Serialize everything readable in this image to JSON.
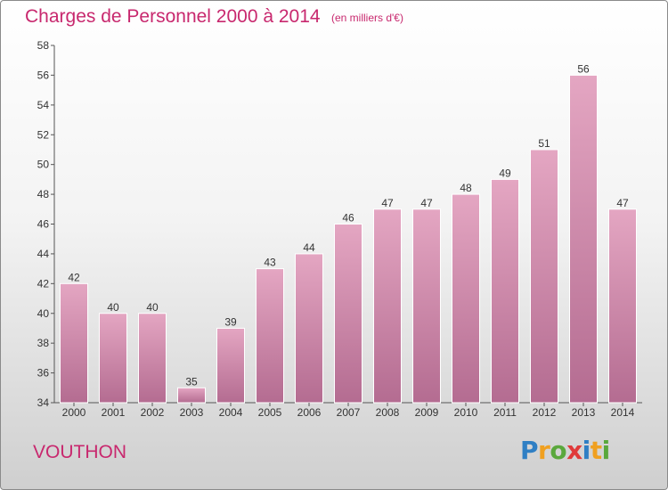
{
  "chart_data": {
    "type": "bar",
    "title": "Charges de Personnel 2000 à 2014",
    "subtitle": "(en milliers d'€)",
    "categories": [
      "2000",
      "2001",
      "2002",
      "2003",
      "2004",
      "2005",
      "2006",
      "2007",
      "2008",
      "2009",
      "2010",
      "2011",
      "2012",
      "2013",
      "2014"
    ],
    "values": [
      42,
      40,
      40,
      35,
      39,
      43,
      44,
      46,
      47,
      47,
      48,
      49,
      51,
      56,
      47
    ],
    "ylim": [
      34,
      58
    ],
    "yticks": [
      34,
      36,
      38,
      40,
      42,
      44,
      46,
      48,
      50,
      52,
      54,
      56,
      58
    ],
    "xlabel": "",
    "ylabel": "",
    "grid": false,
    "bar_color": "#d98aae"
  },
  "place_name": "VOUTHON",
  "logo": {
    "letters": [
      "P",
      "r",
      "o",
      "x",
      "i",
      "t",
      "i"
    ],
    "colors": [
      "#2f7fc4",
      "#f0a020",
      "#5aa83c",
      "#e03a3a",
      "#2f7fc4",
      "#f0a020",
      "#5aa83c"
    ]
  },
  "colors": {
    "accent": "#c8286e",
    "axis": "#555555",
    "text": "#333333"
  }
}
